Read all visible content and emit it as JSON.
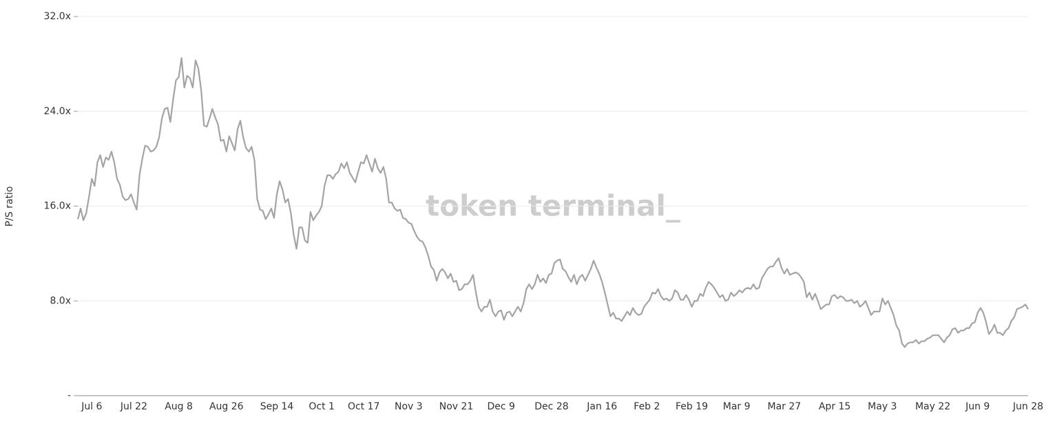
{
  "chart_data": {
    "type": "line",
    "watermark": "token terminal_",
    "y_label": "P/S ratio",
    "color": "#a3a3a3",
    "grid": true,
    "ylim": [
      0,
      32
    ],
    "yticks": [
      {
        "value": 0,
        "label": "-"
      },
      {
        "value": 8,
        "label": "8.0x"
      },
      {
        "value": 16,
        "label": "16.0x"
      },
      {
        "value": 24,
        "label": "24.0x"
      },
      {
        "value": 32,
        "label": "32.0x"
      }
    ],
    "categories": [
      null,
      null,
      null,
      null,
      null,
      "Jul 6",
      null,
      null,
      null,
      null,
      null,
      null,
      null,
      null,
      null,
      null,
      null,
      null,
      null,
      null,
      "Jul 22",
      null,
      null,
      null,
      null,
      null,
      null,
      null,
      null,
      null,
      null,
      null,
      null,
      null,
      null,
      null,
      "Aug 8",
      null,
      null,
      null,
      null,
      null,
      null,
      null,
      null,
      null,
      null,
      null,
      null,
      null,
      null,
      null,
      null,
      "Aug 26",
      null,
      null,
      null,
      null,
      null,
      null,
      null,
      null,
      null,
      null,
      null,
      null,
      null,
      null,
      null,
      null,
      null,
      "Sep 14",
      null,
      null,
      null,
      null,
      null,
      null,
      null,
      null,
      null,
      null,
      null,
      null,
      null,
      null,
      null,
      "Oct 1",
      null,
      null,
      null,
      null,
      null,
      null,
      null,
      null,
      null,
      null,
      null,
      null,
      null,
      null,
      "Oct 17",
      null,
      null,
      null,
      null,
      null,
      null,
      null,
      null,
      null,
      null,
      null,
      null,
      null,
      null,
      null,
      "Nov 3",
      null,
      null,
      null,
      null,
      null,
      null,
      null,
      null,
      null,
      null,
      null,
      null,
      null,
      null,
      null,
      null,
      "Nov 21",
      null,
      null,
      null,
      null,
      null,
      null,
      null,
      null,
      null,
      null,
      null,
      null,
      null,
      null,
      null,
      "Dec 9",
      null,
      null,
      null,
      null,
      null,
      null,
      null,
      null,
      null,
      null,
      null,
      null,
      null,
      null,
      null,
      null,
      null,
      "Dec 28",
      null,
      null,
      null,
      null,
      null,
      null,
      null,
      null,
      null,
      null,
      null,
      null,
      null,
      null,
      null,
      null,
      null,
      "Jan 16",
      null,
      null,
      null,
      null,
      null,
      null,
      null,
      null,
      null,
      null,
      null,
      null,
      null,
      null,
      null,
      "Feb 2",
      null,
      null,
      null,
      null,
      null,
      null,
      null,
      null,
      null,
      null,
      null,
      null,
      null,
      null,
      null,
      "Feb 19",
      null,
      null,
      null,
      null,
      null,
      null,
      null,
      null,
      null,
      null,
      null,
      null,
      null,
      null,
      null,
      "Mar 9",
      null,
      null,
      null,
      null,
      null,
      null,
      null,
      null,
      null,
      null,
      null,
      null,
      null,
      null,
      null,
      null,
      "Mar 27",
      null,
      null,
      null,
      null,
      null,
      null,
      null,
      null,
      null,
      null,
      null,
      null,
      null,
      null,
      null,
      null,
      null,
      "Apr 15",
      null,
      null,
      null,
      null,
      null,
      null,
      null,
      null,
      null,
      null,
      null,
      null,
      null,
      null,
      null,
      null,
      "May 3",
      null,
      null,
      null,
      null,
      null,
      null,
      null,
      null,
      null,
      null,
      null,
      null,
      null,
      null,
      null,
      null,
      null,
      "May 22",
      null,
      null,
      null,
      null,
      null,
      null,
      null,
      null,
      null,
      null,
      null,
      null,
      null,
      null,
      null,
      "Jun 9",
      null,
      null,
      null,
      null,
      null,
      null,
      null,
      null,
      null,
      null,
      null,
      null,
      null,
      null,
      null,
      null,
      null,
      "Jun 28"
    ],
    "values": [
      14.9,
      15.8,
      14.8,
      15.4,
      16.8,
      18.3,
      17.7,
      19.7,
      20.3,
      19.3,
      20.1,
      19.9,
      20.6,
      19.7,
      18.3,
      17.8,
      16.8,
      16.5,
      16.6,
      17.0,
      16.3,
      15.7,
      18.6,
      20.0,
      21.1,
      21.0,
      20.6,
      20.7,
      21.0,
      21.8,
      23.4,
      24.2,
      24.3,
      23.1,
      25.0,
      26.6,
      26.9,
      28.5,
      26.0,
      27.0,
      26.8,
      26.0,
      28.3,
      27.6,
      25.8,
      22.8,
      22.7,
      23.4,
      24.2,
      23.5,
      22.9,
      21.5,
      21.6,
      20.6,
      21.9,
      21.3,
      20.7,
      22.5,
      23.2,
      21.8,
      20.9,
      20.6,
      21.0,
      19.9,
      16.6,
      15.7,
      15.6,
      14.9,
      15.3,
      15.8,
      15.0,
      17.0,
      18.1,
      17.4,
      16.3,
      16.6,
      15.4,
      13.6,
      12.4,
      14.2,
      14.2,
      13.1,
      12.9,
      15.5,
      14.8,
      15.2,
      15.5,
      16.0,
      17.7,
      18.6,
      18.6,
      18.3,
      18.7,
      18.9,
      19.6,
      19.2,
      19.7,
      18.8,
      18.4,
      18.0,
      18.9,
      19.7,
      19.6,
      20.3,
      19.6,
      18.9,
      20.0,
      19.2,
      18.8,
      19.3,
      18.3,
      16.3,
      16.3,
      15.8,
      15.6,
      15.7,
      15.0,
      14.9,
      14.6,
      14.5,
      13.9,
      13.4,
      13.1,
      13.0,
      12.5,
      11.8,
      10.9,
      10.6,
      9.7,
      10.4,
      10.7,
      10.4,
      9.9,
      10.3,
      9.6,
      9.7,
      8.9,
      9.0,
      9.4,
      9.4,
      9.7,
      10.2,
      8.7,
      7.5,
      7.1,
      7.5,
      7.5,
      8.1,
      7.1,
      6.7,
      7.1,
      7.2,
      6.4,
      7.0,
      7.1,
      6.7,
      7.1,
      7.5,
      7.1,
      7.8,
      9.0,
      9.4,
      9.0,
      9.4,
      10.2,
      9.6,
      9.9,
      9.5,
      10.2,
      10.3,
      11.2,
      11.4,
      11.5,
      10.7,
      10.5,
      10.0,
      9.6,
      10.2,
      9.4,
      10.0,
      10.2,
      9.7,
      10.2,
      10.7,
      11.4,
      10.8,
      10.3,
      9.6,
      8.7,
      7.7,
      6.7,
      7.0,
      6.5,
      6.5,
      6.3,
      6.7,
      7.1,
      6.8,
      7.4,
      7.0,
      6.8,
      6.9,
      7.5,
      7.8,
      8.1,
      8.7,
      8.6,
      9.0,
      8.4,
      8.1,
      8.2,
      8.0,
      8.2,
      8.9,
      8.7,
      8.1,
      8.1,
      8.5,
      8.1,
      7.5,
      8.0,
      8.0,
      8.6,
      8.4,
      9.1,
      9.6,
      9.4,
      9.1,
      8.7,
      8.3,
      8.5,
      8.0,
      8.1,
      8.7,
      8.4,
      8.6,
      8.9,
      8.7,
      9.0,
      9.1,
      9.0,
      9.4,
      9.0,
      9.1,
      9.9,
      10.3,
      10.7,
      10.9,
      10.9,
      11.3,
      11.6,
      10.8,
      10.3,
      10.7,
      10.2,
      10.3,
      10.4,
      10.3,
      10.0,
      9.6,
      8.3,
      8.7,
      8.1,
      8.6,
      8.0,
      7.3,
      7.5,
      7.7,
      7.7,
      8.4,
      8.5,
      8.2,
      8.4,
      8.3,
      8.0,
      8.0,
      8.1,
      7.8,
      8.0,
      7.5,
      7.7,
      8.0,
      7.4,
      6.8,
      7.1,
      7.1,
      7.1,
      8.2,
      7.7,
      8.0,
      7.4,
      6.8,
      5.9,
      5.5,
      4.4,
      4.1,
      4.4,
      4.5,
      4.5,
      4.7,
      4.4,
      4.6,
      4.6,
      4.8,
      4.9,
      5.1,
      5.1,
      5.1,
      4.8,
      4.5,
      4.9,
      5.1,
      5.6,
      5.7,
      5.3,
      5.5,
      5.5,
      5.7,
      5.7,
      6.1,
      6.2,
      7.0,
      7.4,
      7.0,
      6.2,
      5.2,
      5.5,
      6.0,
      5.3,
      5.3,
      5.1,
      5.5,
      5.7,
      6.3,
      6.6,
      7.3,
      7.4,
      7.5,
      7.7,
      7.3
    ]
  }
}
